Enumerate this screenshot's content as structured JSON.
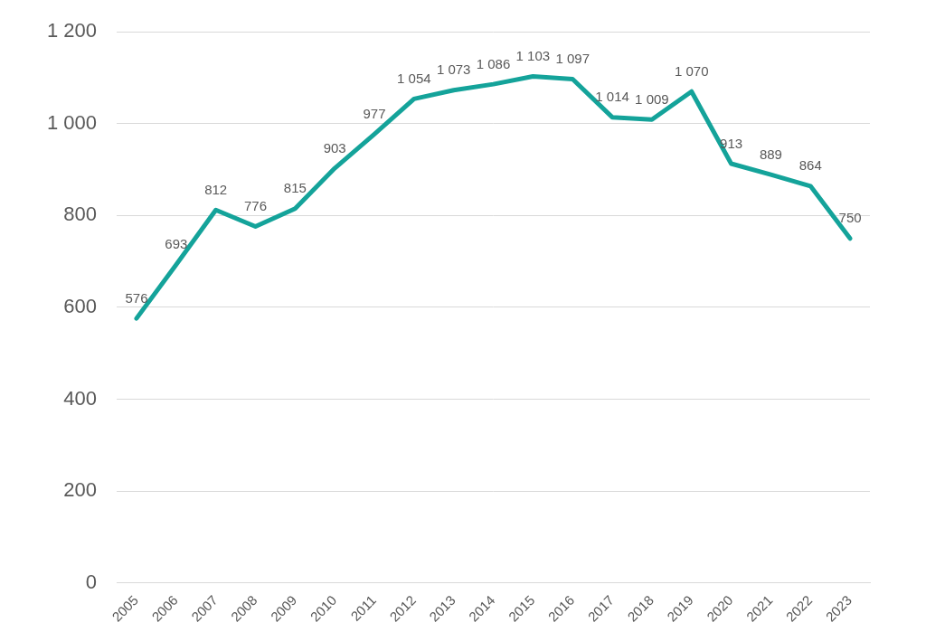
{
  "chart_data": {
    "type": "line",
    "categories": [
      "2005",
      "2006",
      "2007",
      "2008",
      "2009",
      "2010",
      "2011",
      "2012",
      "2013",
      "2014",
      "2015",
      "2016",
      "2017",
      "2018",
      "2019",
      "2020",
      "2021",
      "2022",
      "2023"
    ],
    "values": [
      576,
      693,
      812,
      776,
      815,
      903,
      977,
      1054,
      1073,
      1086,
      1103,
      1097,
      1014,
      1009,
      1070,
      913,
      889,
      864,
      750
    ],
    "value_labels": [
      "576",
      "693",
      "812",
      "776",
      "815",
      "903",
      "977",
      "1 054",
      "1 073",
      "1 086",
      "1 103",
      "1 097",
      "1 014",
      "1 009",
      "1 070",
      "913",
      "889",
      "864",
      "750"
    ],
    "color": "#14a39a",
    "ylim": [
      0,
      1200
    ],
    "yticks": [
      0,
      200,
      400,
      600,
      800,
      {
        "value": 1000,
        "label": "1 000"
      },
      {
        "value": 1200,
        "label": "1 200"
      }
    ],
    "grid": true,
    "data_labels": true
  }
}
